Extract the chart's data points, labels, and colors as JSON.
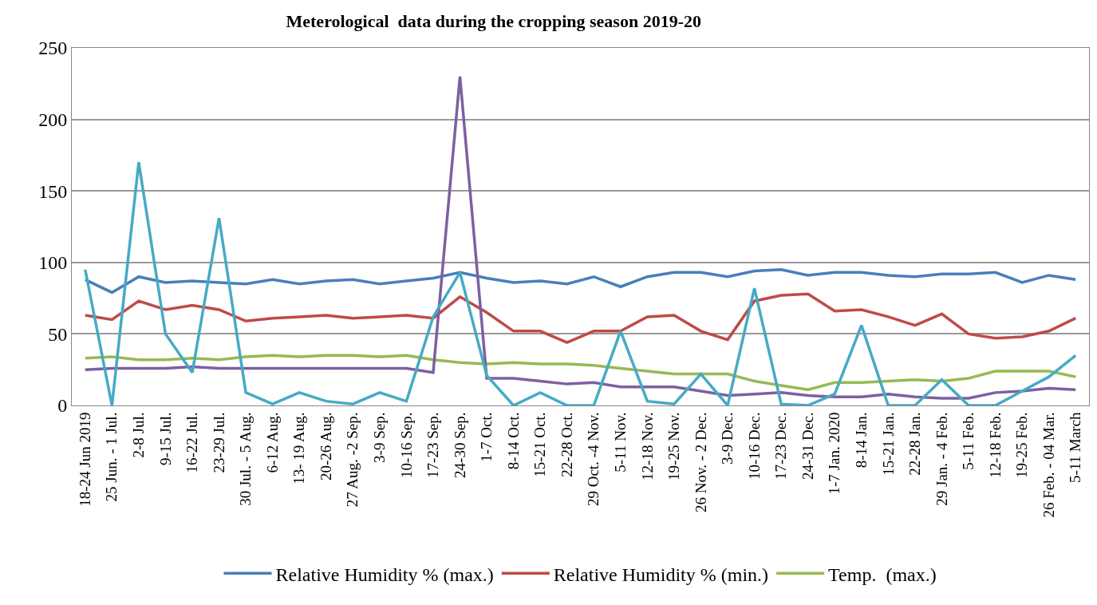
{
  "chart_data": {
    "type": "line",
    "title": "Meterological  data during the cropping season 2019-20",
    "categories": [
      "18-24 Jun 2019",
      "25 Jun. - 1 Jul.",
      "2-8 Jul.",
      "9-15 Jul.",
      "16-22 Jul.",
      "23-29 Jul.",
      "30 Jul. - 5 Aug.",
      "6-12 Aug.",
      "13- 19 Aug.",
      "20-26 Aug.",
      "27 Aug. -2 Sep.",
      "3-9 Sep.",
      "10-16 Sep.",
      "17-23 Sep.",
      "24-30 Sep.",
      "1-7 Oct.",
      "8-14 Oct.",
      "15-21 Oct.",
      "22-28 Oct.",
      "29 Oct. -4 Nov.",
      "5-11 Nov.",
      "12-18 Nov.",
      "19-25 Nov.",
      "26 Nov. - 2 Dec.",
      "3-9 Dec.",
      "10-16 Dec.",
      "17-23 Dec.",
      "24-31 Dec.",
      "1-7 Jan. 2020",
      "8-14 Jan.",
      "15-21 Jan.",
      "22-28 Jan.",
      "29 Jan. - 4 Feb.",
      "5-11 Feb.",
      "12-18 Feb.",
      "19-25 Feb.",
      "26 Feb. - 04 Mar.",
      "5-11 March"
    ],
    "series": [
      {
        "name": "Relative Humidity % (max.)",
        "color": "#4a7ebb",
        "values": [
          88,
          79,
          90,
          86,
          87,
          86,
          85,
          88,
          85,
          87,
          88,
          85,
          87,
          89,
          93,
          89,
          86,
          87,
          85,
          90,
          83,
          90,
          93,
          93,
          90,
          94,
          95,
          91,
          93,
          93,
          91,
          90,
          92,
          92,
          93,
          86,
          91,
          88
        ]
      },
      {
        "name": "Relative Humidity % (min.)",
        "color": "#be4b48",
        "values": [
          63,
          60,
          73,
          67,
          70,
          67,
          59,
          61,
          62,
          63,
          61,
          62,
          63,
          61,
          76,
          65,
          52,
          52,
          44,
          52,
          52,
          62,
          63,
          52,
          46,
          73,
          77,
          78,
          66,
          67,
          62,
          56,
          64,
          50,
          47,
          48,
          52,
          61
        ]
      },
      {
        "name": "Temp.  (max.)",
        "color": "#98b954",
        "values": [
          33,
          34,
          32,
          32,
          33,
          32,
          34,
          35,
          34,
          35,
          35,
          34,
          35,
          32,
          30,
          29,
          30,
          29,
          29,
          28,
          26,
          24,
          22,
          22,
          22,
          17,
          14,
          11,
          16,
          16,
          17,
          18,
          17,
          19,
          24,
          24,
          24,
          20
        ]
      },
      {
        "color": "#7d60a0",
        "values": [
          25,
          26,
          26,
          26,
          27,
          26,
          26,
          26,
          26,
          26,
          26,
          26,
          26,
          23,
          230,
          19,
          19,
          17,
          15,
          16,
          13,
          13,
          13,
          10,
          7,
          8,
          9,
          7,
          6,
          6,
          8,
          6,
          5,
          5,
          9,
          10,
          12,
          11
        ]
      },
      {
        "color": "#46aac5",
        "values": [
          95,
          0,
          170,
          50,
          23,
          131,
          9,
          1,
          9,
          3,
          1,
          9,
          3,
          62,
          93,
          21,
          0,
          9,
          0,
          0,
          52,
          3,
          1,
          22,
          0,
          82,
          1,
          0,
          8,
          56,
          0,
          0,
          18,
          0,
          0,
          10,
          20,
          35
        ]
      }
    ],
    "ylim": [
      0,
      250
    ],
    "yticks": [
      0,
      50,
      100,
      150,
      200,
      250
    ],
    "grid": "y",
    "legend": "bottom",
    "marker": "none",
    "line_style": "solid"
  }
}
